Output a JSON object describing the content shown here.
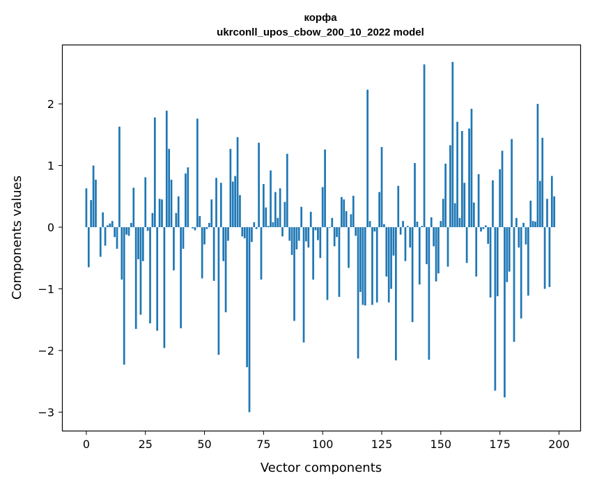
{
  "chart_data": {
    "type": "bar",
    "title": "корфа",
    "subtitle": "ukrconll_upos_cbow_200_10_2022 model",
    "xlabel": "Vector components",
    "ylabel": "Components values",
    "xlim": [
      -10,
      209
    ],
    "ylim": [
      -3.3,
      2.95
    ],
    "xticks": [
      0,
      25,
      50,
      75,
      100,
      125,
      150,
      175,
      200
    ],
    "yticks": [
      -3,
      -2,
      -1,
      0,
      1,
      2
    ],
    "bar_color": "#1f77b4",
    "grid": false,
    "values": [
      0.63,
      -0.65,
      0.44,
      1.0,
      0.77,
      0.0,
      -0.48,
      0.24,
      -0.3,
      0.03,
      0.06,
      0.1,
      -0.16,
      -0.35,
      1.63,
      -0.85,
      -2.23,
      -0.12,
      -0.14,
      0.07,
      0.64,
      -1.65,
      -0.52,
      -1.42,
      -0.55,
      0.81,
      -0.06,
      -1.56,
      0.23,
      1.78,
      -1.68,
      0.46,
      0.45,
      -1.96,
      1.89,
      1.27,
      0.77,
      -0.7,
      0.23,
      0.5,
      -1.64,
      -0.35,
      0.87,
      0.97,
      0.0,
      -0.02,
      -0.05,
      1.76,
      0.18,
      -0.83,
      -0.28,
      -0.03,
      0.07,
      0.45,
      -0.87,
      0.8,
      -2.07,
      0.72,
      -0.55,
      -1.38,
      -0.22,
      1.27,
      0.74,
      0.83,
      1.46,
      0.52,
      -0.15,
      -0.18,
      -2.27,
      -3.0,
      -0.24,
      0.08,
      -0.03,
      1.37,
      -0.85,
      0.7,
      0.32,
      0.02,
      0.92,
      0.08,
      0.57,
      0.15,
      0.63,
      -0.15,
      0.41,
      1.19,
      -0.22,
      -0.45,
      -1.52,
      -0.36,
      -0.22,
      0.33,
      -1.87,
      -0.23,
      -0.33,
      0.25,
      -0.85,
      -0.05,
      -0.21,
      -0.5,
      0.65,
      1.26,
      -1.18,
      -0.01,
      0.15,
      -0.31,
      -0.16,
      -1.13,
      0.49,
      0.45,
      0.26,
      -0.66,
      0.21,
      0.51,
      -0.14,
      -2.13,
      -1.05,
      -1.26,
      -1.27,
      2.23,
      0.1,
      -1.26,
      -0.07,
      -1.22,
      0.57,
      1.3,
      0.05,
      -0.8,
      -1.22,
      -1.0,
      -0.46,
      -2.16,
      0.67,
      -0.12,
      0.1,
      -0.55,
      0.02,
      -0.33,
      -1.54,
      1.04,
      0.09,
      -0.93,
      0.02,
      2.64,
      -0.6,
      -2.15,
      0.16,
      -0.31,
      -0.88,
      -0.75,
      0.1,
      0.46,
      1.03,
      -0.64,
      1.33,
      2.68,
      0.39,
      1.71,
      0.15,
      1.56,
      0.72,
      -0.58,
      1.6,
      1.92,
      0.4,
      -0.8,
      0.86,
      -0.07,
      -0.03,
      0.03,
      -0.27,
      -1.14,
      0.76,
      -2.65,
      -1.12,
      0.94,
      1.24,
      -2.76,
      -0.89,
      -0.72,
      1.43,
      -1.86,
      0.15,
      -0.33,
      -1.48,
      0.07,
      -0.28,
      -1.11,
      0.43,
      0.1,
      0.09,
      2.0,
      0.75,
      1.45,
      -1.0,
      0.46,
      -0.97,
      0.83,
      0.5,
      0.0
    ]
  }
}
